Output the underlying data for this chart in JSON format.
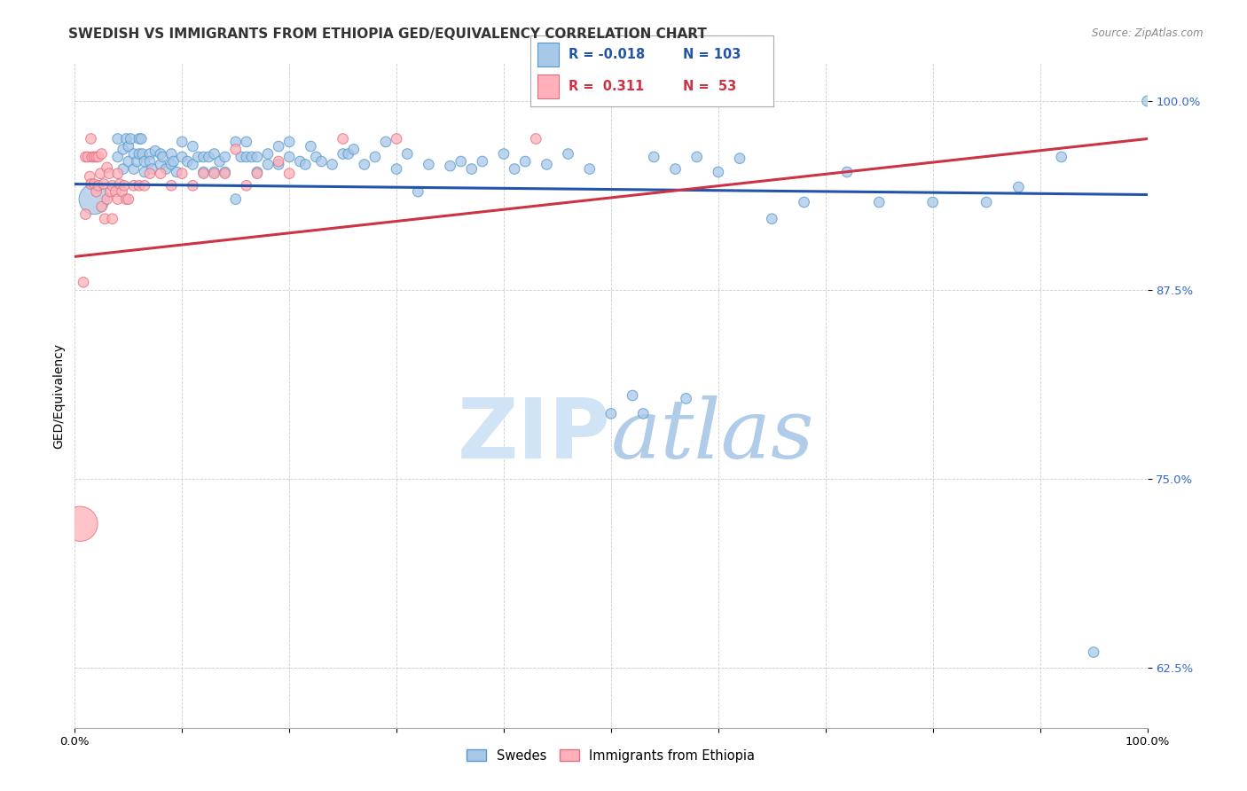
{
  "title": "SWEDISH VS IMMIGRANTS FROM ETHIOPIA GED/EQUIVALENCY CORRELATION CHART",
  "source": "Source: ZipAtlas.com",
  "ylabel": "GED/Equivalency",
  "xlabel": "",
  "xlim": [
    0.0,
    1.0
  ],
  "ylim": [
    0.585,
    1.025
  ],
  "yticks": [
    0.625,
    0.75,
    0.875,
    1.0
  ],
  "ytick_labels": [
    "62.5%",
    "75.0%",
    "87.5%",
    "100.0%"
  ],
  "xticks": [
    0.0,
    0.1,
    0.2,
    0.3,
    0.4,
    0.5,
    0.6,
    0.7,
    0.8,
    0.9,
    1.0
  ],
  "xtick_labels": [
    "0.0%",
    "",
    "",
    "",
    "",
    "",
    "",
    "",
    "",
    "",
    "100.0%"
  ],
  "legend_blue_r": "-0.018",
  "legend_blue_n": "103",
  "legend_pink_r": "0.311",
  "legend_pink_n": "53",
  "blue_color": "#a8c8e8",
  "blue_edge_color": "#5599cc",
  "pink_color": "#ffb0b8",
  "pink_edge_color": "#dd7080",
  "blue_line_color": "#2255aa",
  "pink_line_color": "#cc3344",
  "watermark_color": "#d0e4f5",
  "background_color": "#ffffff",
  "grid_color": "#cccccc",
  "title_fontsize": 11,
  "axis_label_fontsize": 10,
  "tick_fontsize": 9.5,
  "blue_scatter_x": [
    0.018,
    0.04,
    0.04,
    0.045,
    0.045,
    0.048,
    0.05,
    0.05,
    0.052,
    0.055,
    0.055,
    0.058,
    0.06,
    0.06,
    0.062,
    0.063,
    0.065,
    0.065,
    0.07,
    0.07,
    0.072,
    0.075,
    0.08,
    0.08,
    0.082,
    0.085,
    0.09,
    0.09,
    0.092,
    0.095,
    0.1,
    0.1,
    0.105,
    0.11,
    0.11,
    0.115,
    0.12,
    0.12,
    0.125,
    0.13,
    0.13,
    0.135,
    0.14,
    0.14,
    0.15,
    0.15,
    0.155,
    0.16,
    0.16,
    0.165,
    0.17,
    0.17,
    0.18,
    0.18,
    0.19,
    0.19,
    0.2,
    0.2,
    0.21,
    0.215,
    0.22,
    0.225,
    0.23,
    0.24,
    0.25,
    0.255,
    0.26,
    0.27,
    0.28,
    0.29,
    0.3,
    0.31,
    0.32,
    0.33,
    0.35,
    0.36,
    0.37,
    0.38,
    0.4,
    0.41,
    0.42,
    0.44,
    0.46,
    0.48,
    0.5,
    0.52,
    0.54,
    0.56,
    0.58,
    0.6,
    0.62,
    0.65,
    0.68,
    0.72,
    0.75,
    0.8,
    0.85,
    0.88,
    0.92,
    0.95,
    1.0,
    0.53,
    0.57
  ],
  "blue_scatter_y": [
    0.935,
    0.975,
    0.963,
    0.968,
    0.955,
    0.975,
    0.97,
    0.96,
    0.975,
    0.965,
    0.955,
    0.96,
    0.975,
    0.965,
    0.975,
    0.965,
    0.96,
    0.953,
    0.965,
    0.96,
    0.955,
    0.967,
    0.965,
    0.958,
    0.963,
    0.955,
    0.965,
    0.958,
    0.96,
    0.953,
    0.973,
    0.963,
    0.96,
    0.97,
    0.958,
    0.963,
    0.963,
    0.953,
    0.963,
    0.965,
    0.953,
    0.96,
    0.963,
    0.953,
    0.973,
    0.935,
    0.963,
    0.973,
    0.963,
    0.963,
    0.963,
    0.953,
    0.965,
    0.958,
    0.97,
    0.958,
    0.973,
    0.963,
    0.96,
    0.958,
    0.97,
    0.963,
    0.96,
    0.958,
    0.965,
    0.965,
    0.968,
    0.958,
    0.963,
    0.973,
    0.955,
    0.965,
    0.94,
    0.958,
    0.957,
    0.96,
    0.955,
    0.96,
    0.965,
    0.955,
    0.96,
    0.958,
    0.965,
    0.955,
    0.793,
    0.805,
    0.963,
    0.955,
    0.963,
    0.953,
    0.962,
    0.922,
    0.933,
    0.953,
    0.933,
    0.933,
    0.933,
    0.943,
    0.963,
    0.635,
    1.0,
    0.793,
    0.803
  ],
  "blue_scatter_sizes": [
    600,
    70,
    70,
    70,
    70,
    70,
    70,
    70,
    70,
    70,
    70,
    70,
    70,
    70,
    70,
    70,
    70,
    70,
    70,
    70,
    70,
    70,
    70,
    70,
    70,
    70,
    70,
    70,
    70,
    70,
    70,
    70,
    70,
    70,
    70,
    70,
    70,
    70,
    70,
    70,
    70,
    70,
    70,
    70,
    70,
    70,
    70,
    70,
    70,
    70,
    70,
    70,
    70,
    70,
    70,
    70,
    70,
    70,
    70,
    70,
    70,
    70,
    70,
    70,
    70,
    70,
    70,
    70,
    70,
    70,
    70,
    70,
    70,
    70,
    70,
    70,
    70,
    70,
    70,
    70,
    70,
    70,
    70,
    70,
    70,
    70,
    70,
    70,
    70,
    70,
    70,
    70,
    70,
    70,
    70,
    70,
    70,
    70,
    70,
    70,
    70,
    70,
    70
  ],
  "pink_scatter_x": [
    0.005,
    0.008,
    0.01,
    0.01,
    0.012,
    0.014,
    0.015,
    0.015,
    0.016,
    0.018,
    0.018,
    0.02,
    0.02,
    0.022,
    0.022,
    0.024,
    0.025,
    0.025,
    0.027,
    0.028,
    0.03,
    0.03,
    0.032,
    0.033,
    0.035,
    0.035,
    0.038,
    0.04,
    0.04,
    0.042,
    0.044,
    0.046,
    0.048,
    0.05,
    0.055,
    0.06,
    0.065,
    0.07,
    0.08,
    0.09,
    0.1,
    0.11,
    0.12,
    0.13,
    0.14,
    0.15,
    0.16,
    0.17,
    0.19,
    0.2,
    0.25,
    0.3,
    0.43
  ],
  "pink_scatter_y": [
    0.72,
    0.88,
    0.963,
    0.925,
    0.963,
    0.95,
    0.975,
    0.945,
    0.963,
    0.963,
    0.945,
    0.963,
    0.94,
    0.963,
    0.944,
    0.952,
    0.965,
    0.93,
    0.945,
    0.922,
    0.956,
    0.935,
    0.952,
    0.94,
    0.944,
    0.922,
    0.94,
    0.952,
    0.935,
    0.945,
    0.94,
    0.944,
    0.935,
    0.935,
    0.944,
    0.944,
    0.944,
    0.952,
    0.952,
    0.944,
    0.952,
    0.944,
    0.952,
    0.952,
    0.952,
    0.968,
    0.944,
    0.952,
    0.96,
    0.952,
    0.975,
    0.975,
    0.975
  ],
  "pink_scatter_sizes": [
    800,
    70,
    70,
    70,
    70,
    70,
    70,
    70,
    70,
    70,
    70,
    70,
    70,
    70,
    70,
    70,
    70,
    70,
    70,
    70,
    70,
    70,
    70,
    70,
    70,
    70,
    70,
    70,
    70,
    70,
    70,
    70,
    70,
    70,
    70,
    70,
    70,
    70,
    70,
    70,
    70,
    70,
    70,
    70,
    70,
    70,
    70,
    70,
    70,
    70,
    70,
    70,
    70
  ],
  "blue_trendline_x": [
    0.0,
    1.0
  ],
  "blue_trendline_y": [
    0.945,
    0.938
  ],
  "pink_trendline_x": [
    0.0,
    1.0
  ],
  "pink_trendline_y": [
    0.897,
    0.975
  ]
}
